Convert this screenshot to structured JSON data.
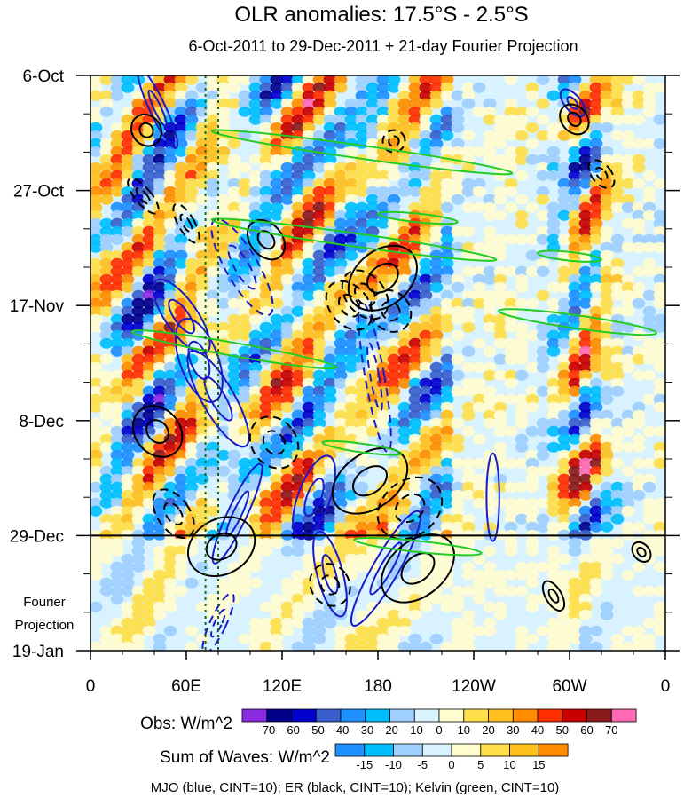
{
  "chart_data": {
    "type": "heatmap",
    "title": "OLR anomalies: 17.5°S - 2.5°S",
    "subtitle": "6-Oct-2011 to 29-Dec-2011 + 21-day Fourier Projection",
    "x_ticks": [
      "0",
      "60E",
      "120E",
      "180",
      "120W",
      "60W",
      "0"
    ],
    "x_tick_values": [
      0,
      60,
      120,
      180,
      240,
      300,
      360
    ],
    "xlim": [
      0,
      360
    ],
    "y_ticks": [
      "6-Oct",
      "27-Oct",
      "17-Nov",
      "8-Dec",
      "29-Dec",
      "19-Jan"
    ],
    "y_tick_days": [
      0,
      21,
      42,
      63,
      84,
      105
    ],
    "ylim_days": [
      0,
      105
    ],
    "projection_start_day": 84,
    "projection_label": [
      "Fourier",
      "Projection"
    ],
    "dotted_lines_lon": [
      72,
      80
    ],
    "obs_colorbar": {
      "label": "Obs: W/m^2",
      "levels": [
        "-70",
        "-60",
        "-50",
        "-40",
        "-30",
        "-20",
        "-10",
        "0",
        "10",
        "20",
        "30",
        "40",
        "50",
        "60",
        "70"
      ],
      "colors": [
        "#8a2be2",
        "#00008b",
        "#0000cd",
        "#3a5fcd",
        "#1e90ff",
        "#00bfff",
        "#9ecfff",
        "#d8f2ff",
        "#fffccf",
        "#ffe04a",
        "#ffc020",
        "#ff8c00",
        "#ff3000",
        "#c80000",
        "#8b1a1a",
        "#ff69b4"
      ]
    },
    "waves_colorbar": {
      "label": "Sum of Waves: W/m^2",
      "levels": [
        "-15",
        "-10",
        "-5",
        "0",
        "5",
        "10",
        "15"
      ],
      "colors": [
        "#1e90ff",
        "#00bfff",
        "#9ecfff",
        "#d8f2ff",
        "#fffccf",
        "#ffe04a",
        "#ffc020",
        "#ff8c00"
      ]
    },
    "footer": "MJO (blue, CINT=10); ER (black, CINT=10); Kelvin (green, CINT=10)",
    "wave_colors": {
      "mjo": "#1a1ac8",
      "er": "#000000",
      "kelvin": "#22cc22"
    },
    "mjo_contours": [
      {
        "lon": 42,
        "day": 6,
        "rx": 5,
        "ry": 8,
        "angle": -25,
        "dashed": false
      },
      {
        "lon": 57,
        "day": 44,
        "rx": 10,
        "ry": 8,
        "angle": -35,
        "dashed": false
      },
      {
        "lon": 68,
        "day": 52,
        "rx": 12,
        "ry": 8,
        "angle": -20,
        "dashed": false
      },
      {
        "lon": 80,
        "day": 59,
        "rx": 10,
        "ry": 10,
        "angle": -30,
        "dashed": false
      },
      {
        "lon": 92,
        "day": 80,
        "rx": 6,
        "ry": 10,
        "angle": 25,
        "dashed": false
      },
      {
        "lon": 95,
        "day": 35,
        "rx": 10,
        "ry": 10,
        "angle": -30,
        "dashed": true
      },
      {
        "lon": 140,
        "day": 77,
        "rx": 10,
        "ry": 8,
        "angle": 20,
        "dashed": false
      },
      {
        "lon": 150,
        "day": 91,
        "rx": 8,
        "ry": 8,
        "angle": -15,
        "dashed": false
      },
      {
        "lon": 178,
        "day": 55,
        "rx": 6,
        "ry": 14,
        "angle": -10,
        "dashed": true
      },
      {
        "lon": 185,
        "day": 90,
        "rx": 8,
        "ry": 12,
        "angle": 30,
        "dashed": false
      },
      {
        "lon": 80,
        "day": 100,
        "rx": 5,
        "ry": 6,
        "angle": 25,
        "dashed": true
      },
      {
        "lon": 252,
        "day": 77,
        "rx": 4,
        "ry": 8,
        "angle": 0,
        "dashed": false
      },
      {
        "lon": 302,
        "day": 5,
        "rx": 5,
        "ry": 3,
        "angle": -40,
        "dashed": false
      }
    ],
    "er_contours": [
      {
        "lon": 35,
        "day": 10,
        "rx": 9,
        "ry": 3,
        "angle": -35,
        "dashed": false
      },
      {
        "lon": 33,
        "day": 22,
        "rx": 5,
        "ry": 4,
        "angle": -40,
        "dashed": true
      },
      {
        "lon": 60,
        "day": 27,
        "rx": 5,
        "ry": 4,
        "angle": -30,
        "dashed": true
      },
      {
        "lon": 110,
        "day": 30,
        "rx": 10,
        "ry": 4,
        "angle": -40,
        "dashed": false
      },
      {
        "lon": 183,
        "day": 37,
        "rx": 24,
        "ry": 5,
        "angle": -40,
        "dashed": false
      },
      {
        "lon": 162,
        "day": 42,
        "rx": 12,
        "ry": 5,
        "angle": -40,
        "dashed": true
      },
      {
        "lon": 172,
        "day": 40,
        "rx": 12,
        "ry": 5,
        "angle": -40,
        "dashed": true
      },
      {
        "lon": 188,
        "day": 43,
        "rx": 12,
        "ry": 4,
        "angle": -40,
        "dashed": true
      },
      {
        "lon": 190,
        "day": 12,
        "rx": 7,
        "ry": 2,
        "angle": -40,
        "dashed": true
      },
      {
        "lon": 42,
        "day": 65,
        "rx": 14,
        "ry": 5,
        "angle": -40,
        "dashed": false
      },
      {
        "lon": 52,
        "day": 80,
        "rx": 10,
        "ry": 5,
        "angle": -35,
        "dashed": true
      },
      {
        "lon": 82,
        "day": 86,
        "rx": 22,
        "ry": 5,
        "angle": -30,
        "dashed": false
      },
      {
        "lon": 115,
        "day": 67,
        "rx": 14,
        "ry": 5,
        "angle": -35,
        "dashed": true
      },
      {
        "lon": 175,
        "day": 74,
        "rx": 26,
        "ry": 5,
        "angle": -35,
        "dashed": false
      },
      {
        "lon": 200,
        "day": 79,
        "rx": 22,
        "ry": 5,
        "angle": -40,
        "dashed": true
      },
      {
        "lon": 205,
        "day": 90,
        "rx": 26,
        "ry": 5,
        "angle": -40,
        "dashed": false
      },
      {
        "lon": 150,
        "day": 93,
        "rx": 12,
        "ry": 4,
        "angle": -35,
        "dashed": true
      },
      {
        "lon": 290,
        "day": 95,
        "rx": 5,
        "ry": 3,
        "angle": -30,
        "dashed": false
      },
      {
        "lon": 303,
        "day": 8,
        "rx": 8,
        "ry": 3,
        "angle": -40,
        "dashed": false
      },
      {
        "lon": 320,
        "day": 18,
        "rx": 6,
        "ry": 3,
        "angle": -40,
        "dashed": true
      },
      {
        "lon": 345,
        "day": 87,
        "rx": 5,
        "ry": 2,
        "angle": -40,
        "dashed": false
      }
    ],
    "kelvin_contours": [
      {
        "lon": 170,
        "day": 14,
        "rx": 95,
        "ry": 1.2,
        "angle": 8,
        "dashed": false
      },
      {
        "lon": 165,
        "day": 30,
        "rx": 90,
        "ry": 1.2,
        "angle": 8,
        "dashed": false
      },
      {
        "lon": 90,
        "day": 50,
        "rx": 65,
        "ry": 1.2,
        "angle": 10,
        "dashed": false
      },
      {
        "lon": 305,
        "day": 45,
        "rx": 50,
        "ry": 1.2,
        "angle": 8,
        "dashed": false
      },
      {
        "lon": 170,
        "day": 68,
        "rx": 25,
        "ry": 0.8,
        "angle": 8,
        "dashed": false
      },
      {
        "lon": 205,
        "day": 86,
        "rx": 40,
        "ry": 1.0,
        "angle": 6,
        "dashed": false
      },
      {
        "lon": 205,
        "day": 26,
        "rx": 25,
        "ry": 0.8,
        "angle": 6,
        "dashed": false
      },
      {
        "lon": 300,
        "day": 33,
        "rx": 20,
        "ry": 0.8,
        "angle": 6,
        "dashed": false
      }
    ]
  }
}
